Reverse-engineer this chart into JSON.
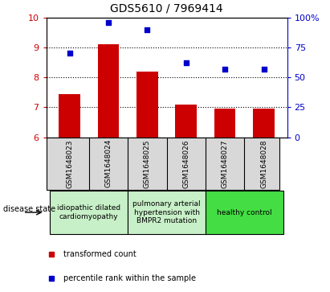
{
  "title": "GDS5610 / 7969414",
  "samples": [
    "GSM1648023",
    "GSM1648024",
    "GSM1648025",
    "GSM1648026",
    "GSM1648027",
    "GSM1648028"
  ],
  "bar_values": [
    7.45,
    9.1,
    8.2,
    7.1,
    6.97,
    6.97
  ],
  "scatter_values": [
    70,
    96,
    90,
    62,
    57,
    57
  ],
  "ylim_left": [
    6,
    10
  ],
  "ylim_right": [
    0,
    100
  ],
  "yticks_left": [
    6,
    7,
    8,
    9,
    10
  ],
  "yticks_right": [
    0,
    25,
    50,
    75,
    100
  ],
  "ytick_labels_right": [
    "0",
    "25",
    "50",
    "75",
    "100%"
  ],
  "bar_color": "#cc0000",
  "scatter_color": "#0000cc",
  "groups": [
    {
      "label": "idiopathic dilated\ncardiomyopathy",
      "indices": [
        0,
        1
      ],
      "color": "#c8f0c8"
    },
    {
      "label": "pulmonary arterial\nhypertension with\nBMPR2 mutation",
      "indices": [
        2,
        3
      ],
      "color": "#c8f0c8"
    },
    {
      "label": "healthy control",
      "indices": [
        4,
        5
      ],
      "color": "#44dd44"
    }
  ],
  "legend_bar_label": "transformed count",
  "legend_scatter_label": "percentile rank within the sample",
  "disease_state_label": "disease state",
  "bg_color": "#d8d8d8",
  "plot_bg": "#ffffff"
}
